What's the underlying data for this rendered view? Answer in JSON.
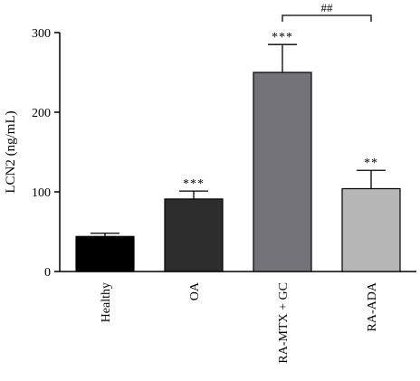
{
  "chart_data": {
    "type": "bar",
    "categories": [
      "Healthy",
      "OA",
      "RA-MTX + GC",
      "RA-ADA"
    ],
    "values": [
      44,
      91,
      250,
      104
    ],
    "errors": [
      4,
      10,
      35,
      23
    ],
    "significance": [
      "",
      "***",
      "***",
      "**"
    ],
    "comparison": {
      "from": 2,
      "to": 3,
      "label": "##"
    },
    "bar_colors": [
      "#000000",
      "#2d2d2d",
      "#747377",
      "#b6b6b6"
    ],
    "ylabel": "LCN2 (ng/mL)",
    "ylim": [
      0,
      300
    ],
    "yticks": [
      0,
      100,
      200,
      300
    ],
    "xlabel": "",
    "title": "",
    "grid": false,
    "legend": "none"
  }
}
